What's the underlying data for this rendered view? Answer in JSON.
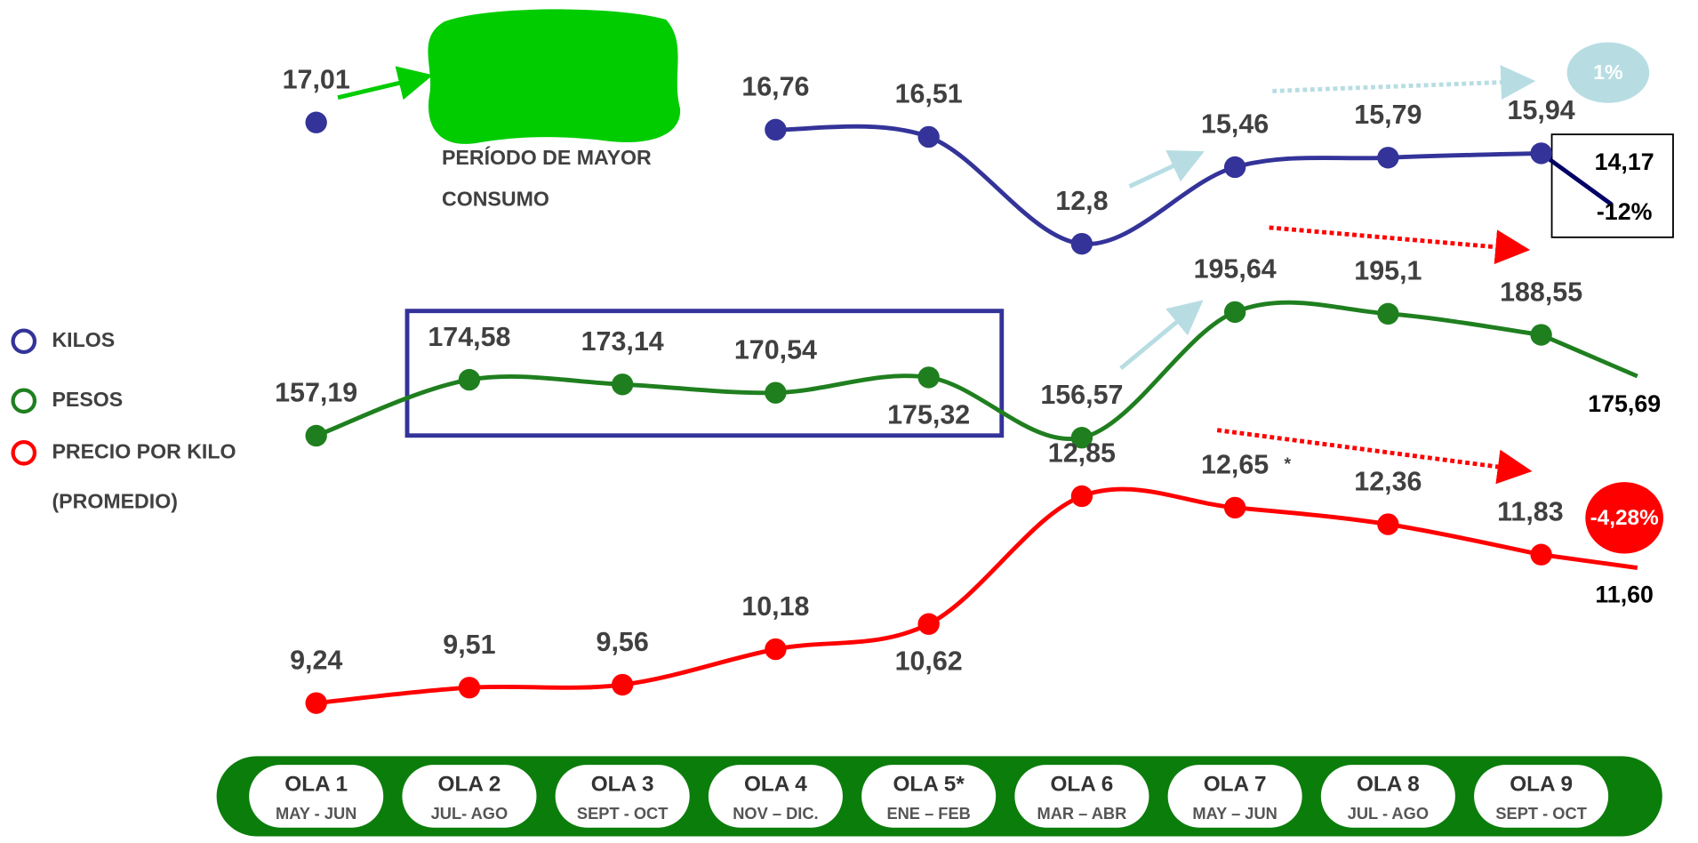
{
  "chart_data": {
    "type": "line",
    "categories": [
      "OLA 1",
      "OLA 2",
      "OLA 3",
      "OLA 4",
      "OLA 5*",
      "OLA 6",
      "OLA 7",
      "OLA 8",
      "OLA 9"
    ],
    "category_sublabels": [
      "MAY - JUN",
      "JUL- AGO",
      "SEPT - OCT",
      "NOV – DIC.",
      "ENE – FEB",
      "MAR – ABR",
      "MAY – JUN",
      "JUL - AGO",
      "SEPT - OCT"
    ],
    "series": [
      {
        "name": "KILOS",
        "color": "#333399",
        "values": [
          17.01,
          null,
          null,
          16.76,
          16.51,
          12.8,
          15.46,
          15.79,
          15.94
        ],
        "value_labels": [
          "17,01",
          null,
          null,
          "16,76",
          "16,51",
          "12,8",
          "15,46",
          "15,79",
          "15,94"
        ],
        "projection": 14.17,
        "projection_label": "14,17",
        "projection_change": "-12%",
        "trend_label": "1%"
      },
      {
        "name": "PESOS",
        "color": "#1f7f1f",
        "values": [
          157.19,
          174.58,
          173.14,
          170.54,
          175.32,
          156.57,
          195.64,
          195.1,
          188.55
        ],
        "value_labels": [
          "157,19",
          "174,58",
          "173,14",
          "170,54",
          "175,32",
          "156,57",
          "195,64",
          "195,1",
          "188,55"
        ],
        "projection": 175.69,
        "projection_label": "175,69"
      },
      {
        "name": "PRECIO POR KILO (PROMEDIO)",
        "color": "#ff0000",
        "values": [
          9.24,
          9.51,
          9.56,
          10.18,
          10.62,
          12.85,
          12.65,
          12.36,
          11.83
        ],
        "value_labels": [
          "9,24",
          "9,51",
          "9,56",
          "10,18",
          "10,62",
          "12,85",
          "12,65",
          "12,36",
          "11,83"
        ],
        "projection": 11.6,
        "projection_label": "11,60",
        "projection_change": "-4,28%"
      }
    ],
    "annotations": {
      "period": "PERÍODO DE MAYOR CONSUMO",
      "note": "*"
    }
  }
}
